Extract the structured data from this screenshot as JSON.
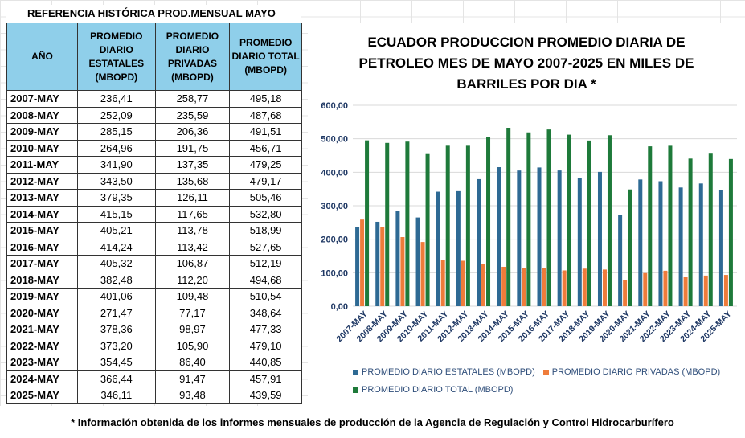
{
  "sheet": {
    "title": "REFERENCIA HISTÓRICA PROD.MENSUAL MAYO",
    "headers": [
      "AÑO",
      "PROMEDIO DIARIO ESTATALES (MBOPD)",
      "PROMEDIO DIARIO PRIVADAS (MBOPD)",
      "PROMEDIO DIARIO TOTAL (MBOPD)"
    ],
    "rows": [
      [
        "2007-MAY",
        "236,41",
        "258,77",
        "495,18"
      ],
      [
        "2008-MAY",
        "252,09",
        "235,59",
        "487,68"
      ],
      [
        "2009-MAY",
        "285,15",
        "206,36",
        "491,51"
      ],
      [
        "2010-MAY",
        "264,96",
        "191,75",
        "456,71"
      ],
      [
        "2011-MAY",
        "341,90",
        "137,35",
        "479,25"
      ],
      [
        "2012-MAY",
        "343,50",
        "135,68",
        "479,17"
      ],
      [
        "2013-MAY",
        "379,35",
        "126,11",
        "505,46"
      ],
      [
        "2014-MAY",
        "415,15",
        "117,65",
        "532,80"
      ],
      [
        "2015-MAY",
        "405,21",
        "113,78",
        "518,99"
      ],
      [
        "2016-MAY",
        "414,24",
        "113,42",
        "527,65"
      ],
      [
        "2017-MAY",
        "405,32",
        "106,87",
        "512,19"
      ],
      [
        "2018-MAY",
        "382,48",
        "112,20",
        "494,68"
      ],
      [
        "2019-MAY",
        "401,06",
        "109,48",
        "510,54"
      ],
      [
        "2020-MAY",
        "271,47",
        "77,17",
        "348,64"
      ],
      [
        "2021-MAY",
        "378,36",
        "98,97",
        "477,33"
      ],
      [
        "2022-MAY",
        "373,20",
        "105,90",
        "479,10"
      ],
      [
        "2023-MAY",
        "354,45",
        "86,40",
        "440,85"
      ],
      [
        "2024-MAY",
        "366,44",
        "91,47",
        "457,91"
      ],
      [
        "2025-MAY",
        "346,11",
        "93,48",
        "439,59"
      ]
    ]
  },
  "chart_data": {
    "type": "bar",
    "title": "ECUADOR PRODUCCION PROMEDIO DIARIA DE PETROLEO MES DE MAYO 2007-2025 EN MILES DE BARRILES POR DIA *",
    "xlabel": "",
    "ylabel": "",
    "ylim": [
      0,
      600
    ],
    "yticks": [
      "0,00",
      "100,00",
      "200,00",
      "300,00",
      "400,00",
      "500,00",
      "600,00"
    ],
    "grid": true,
    "legend_position": "bottom",
    "categories": [
      "2007-MAY",
      "2008-MAY",
      "2009-MAY",
      "2010-MAY",
      "2011-MAY",
      "2012-MAY",
      "2013-MAY",
      "2014-MAY",
      "2015-MAY",
      "2016-MAY",
      "2017-MAY",
      "2018-MAY",
      "2019-MAY",
      "2020-MAY",
      "2021-MAY",
      "2022-MAY",
      "2023-MAY",
      "2024-MAY",
      "2025-MAY"
    ],
    "series": [
      {
        "name": "PROMEDIO DIARIO ESTATALES (MBOPD)",
        "color": "#2e6a94",
        "values": [
          236.41,
          252.09,
          285.15,
          264.96,
          341.9,
          343.5,
          379.35,
          415.15,
          405.21,
          414.24,
          405.32,
          382.48,
          401.06,
          271.47,
          378.36,
          373.2,
          354.45,
          366.44,
          346.11
        ]
      },
      {
        "name": "PROMEDIO DIARIO PRIVADAS (MBOPD)",
        "color": "#ef7c3b",
        "values": [
          258.77,
          235.59,
          206.36,
          191.75,
          137.35,
          135.68,
          126.11,
          117.65,
          113.78,
          113.42,
          106.87,
          112.2,
          109.48,
          77.17,
          98.97,
          105.9,
          86.4,
          91.47,
          93.48
        ]
      },
      {
        "name": "PROMEDIO DIARIO TOTAL (MBOPD)",
        "color": "#1e7a3a",
        "values": [
          495.18,
          487.68,
          491.51,
          456.71,
          479.25,
          479.17,
          505.46,
          532.8,
          518.99,
          527.65,
          512.19,
          494.68,
          510.54,
          348.64,
          477.33,
          479.1,
          440.85,
          457.91,
          439.59
        ]
      }
    ]
  },
  "footnote": "* Información obtenida de los informes mensuales de producción de la Agencia de Regulación y Control Hidrocarburífero"
}
